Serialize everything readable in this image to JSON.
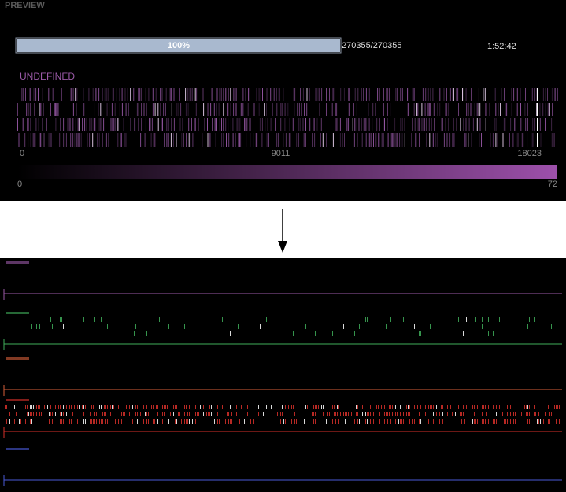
{
  "header": {
    "title": "PREVIEW"
  },
  "progress": {
    "percent": {
      "value": 100,
      "label": "100%"
    },
    "count": "270355/270355",
    "elapsed": "1:52:42"
  },
  "preview": {
    "label": "UNDEFINED",
    "xticks": [
      0,
      9011,
      18023
    ],
    "scale_ticks": [
      0,
      72
    ]
  }
}
